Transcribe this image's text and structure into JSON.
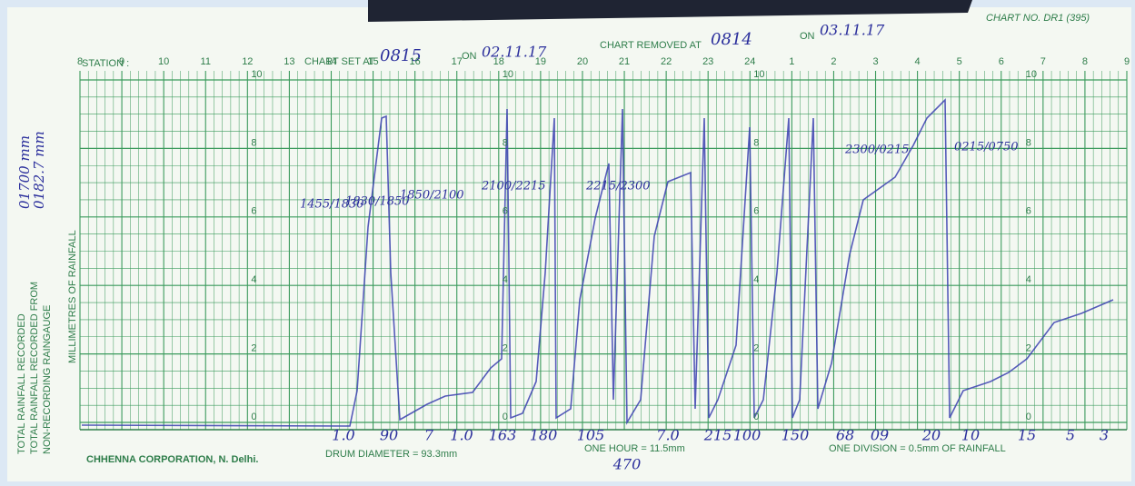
{
  "header": {
    "chart_no": "CHART NO. DR1 (395)",
    "station": "STATION :",
    "set_label": "CHART SET AT",
    "set_time": "0815",
    "on_set": "ON",
    "set_date": "02.11.17",
    "removed_label": "CHART REMOVED AT",
    "removed_time": "0814",
    "on_removed": "ON",
    "removed_date": "03.11.17"
  },
  "side": {
    "total_recorded": "TOTAL RAINFALL RECORDED",
    "total_from": "TOTAL RAINFALL RECORDED FROM",
    "non_recording": "NON-RECORDING RAINGAUGE",
    "total_value": "01700 mm",
    "from_value": "0182.7 mm"
  },
  "scale": {
    "label": "MILLIMETRES OF RAINFALL",
    "hours": [
      "8",
      "9",
      "10",
      "11",
      "12",
      "13",
      "14",
      "15",
      "16",
      "17",
      "18",
      "19",
      "20",
      "21",
      "22",
      "23",
      "24",
      "1",
      "2",
      "3",
      "4",
      "5",
      "6",
      "7",
      "8",
      "9"
    ],
    "mm": [
      "0",
      "2",
      "4",
      "6",
      "8",
      "10"
    ]
  },
  "annotations": [
    "1455/1830",
    "1830/1850",
    "1850/2100",
    "2100/2215",
    "2215/2300",
    "2300/0215",
    "0215/0750"
  ],
  "bottom_notes": [
    "1.0",
    "90",
    "7",
    "1.0",
    "163",
    "180",
    "105",
    "470",
    "7.0",
    "215",
    "100",
    "150",
    "68",
    "09",
    "20",
    "10",
    "15",
    "5",
    "3"
  ],
  "footer": {
    "maker": "CHHENNA CORPORATION, N. Delhi.",
    "drum": "DRUM DIAMETER = 93.3mm",
    "hour": "ONE HOUR = 11.5mm",
    "division": "ONE DIVISION = 0.5mm OF RAINFALL"
  }
}
